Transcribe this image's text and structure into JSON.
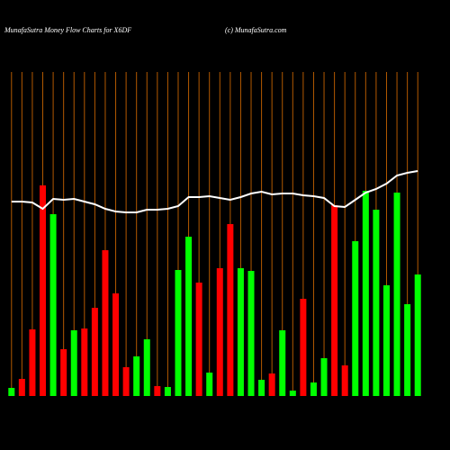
{
  "chart_data": {
    "type": "bar-line",
    "title": "MunafaSutra  Money Flow  Charts for X6DF",
    "subtitle": "(c) MunafaSutra.com",
    "categories": [
      null,
      null,
      null,
      null,
      null,
      null,
      null,
      null,
      null,
      null,
      null,
      null,
      null,
      null,
      null,
      null,
      null,
      null,
      null,
      null,
      null,
      null,
      null,
      null,
      null,
      null,
      null,
      null,
      null,
      null,
      null,
      null,
      null,
      null,
      null,
      null,
      null,
      null,
      null,
      null
    ],
    "ylim": [
      0,
      360
    ],
    "grid": true,
    "grid_color": "#b35900",
    "series": [
      {
        "kind": "bar",
        "values": [
          9,
          19,
          74,
          234,
          202,
          52,
          73,
          75,
          98,
          162,
          114,
          32,
          44,
          63,
          11,
          10,
          140,
          177,
          126,
          26,
          142,
          191,
          142,
          139,
          18,
          25,
          73,
          6,
          108,
          15,
          42,
          212,
          34,
          172,
          228,
          207,
          123,
          226,
          102,
          135
        ],
        "colors": [
          "#00ff00",
          "#ff0000",
          "#ff0000",
          "#ff0000",
          "#00ff00",
          "#ff0000",
          "#00ff00",
          "#ff0000",
          "#ff0000",
          "#ff0000",
          "#ff0000",
          "#ff0000",
          "#00ff00",
          "#00ff00",
          "#ff0000",
          "#00ff00",
          "#00ff00",
          "#00ff00",
          "#ff0000",
          "#00ff00",
          "#ff0000",
          "#ff0000",
          "#00ff00",
          "#00ff00",
          "#00ff00",
          "#ff0000",
          "#00ff00",
          "#00ff00",
          "#ff0000",
          "#00ff00",
          "#00ff00",
          "#ff0000",
          "#ff0000",
          "#00ff00",
          "#00ff00",
          "#00ff00",
          "#00ff00",
          "#00ff00",
          "#00ff00",
          "#00ff00"
        ]
      },
      {
        "kind": "line",
        "color": "#ffffff",
        "values": [
          216,
          216,
          215,
          208,
          219,
          218,
          219,
          216,
          213,
          208,
          205,
          204,
          204,
          207,
          207,
          208,
          211,
          221,
          221,
          222,
          220,
          218,
          221,
          225,
          227,
          224,
          225,
          225,
          223,
          222,
          220,
          211,
          210,
          218,
          226,
          230,
          236,
          245,
          248,
          250
        ]
      }
    ]
  }
}
